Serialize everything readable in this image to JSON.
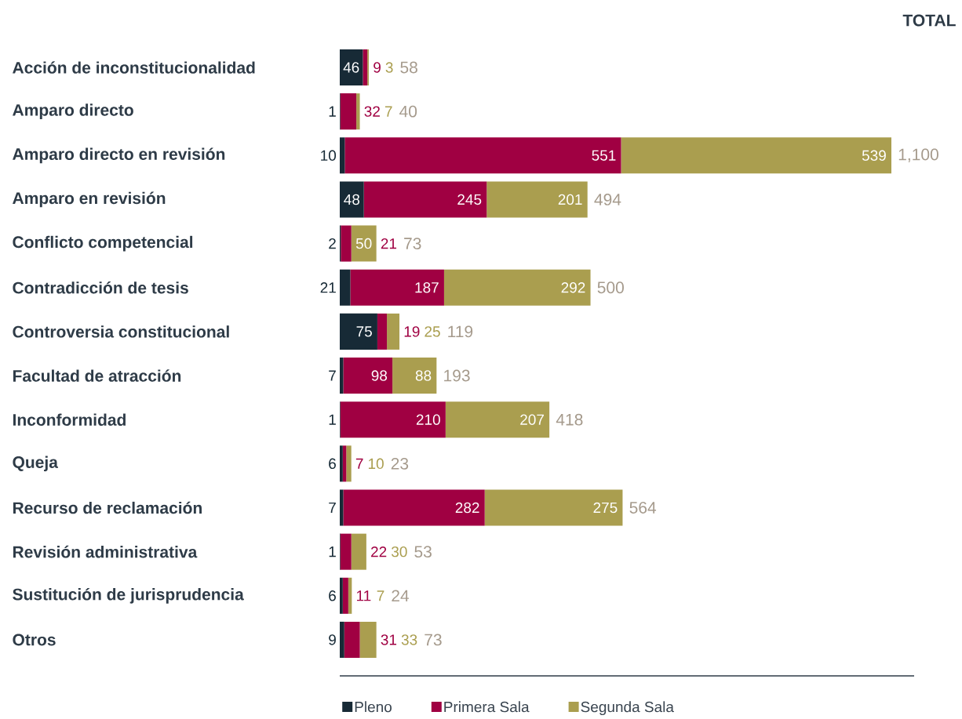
{
  "chart_data": {
    "type": "bar",
    "orientation": "horizontal",
    "stacked": true,
    "data_labels": true,
    "legend": "bottom",
    "tick_labels": "y",
    "categories": [
      "Acción de inconstitucionalidad",
      "Amparo directo",
      "Amparo directo en revisión",
      "Amparo en revisión",
      "Conflicto competencial",
      "Contradicción de tesis",
      "Controversia constitucional",
      "Facultad de atracción",
      "Inconformidad",
      "Queja",
      "Recurso de reclamación",
      "Revisión administrativa",
      "Sustitución de jurisprudencia",
      "Otros"
    ],
    "series": [
      {
        "name": "Pleno",
        "color": "#172a36",
        "values": [
          46,
          1,
          10,
          48,
          2,
          21,
          75,
          7,
          1,
          6,
          7,
          1,
          6,
          9
        ]
      },
      {
        "name": "Primera Sala",
        "color": "#a00042",
        "values": [
          9,
          32,
          551,
          245,
          21,
          187,
          19,
          98,
          210,
          7,
          282,
          22,
          11,
          31
        ]
      },
      {
        "name": "Segunda Sala",
        "color": "#aa9e4f",
        "values": [
          3,
          7,
          539,
          201,
          50,
          292,
          25,
          88,
          207,
          10,
          275,
          30,
          7,
          33
        ]
      }
    ],
    "totals": [
      "58",
      "40",
      "1,100",
      "494",
      "73",
      "500",
      "119",
      "193",
      "418",
      "23",
      "564",
      "53",
      "24",
      "73"
    ],
    "annotations": [
      "TOTAL"
    ]
  }
}
